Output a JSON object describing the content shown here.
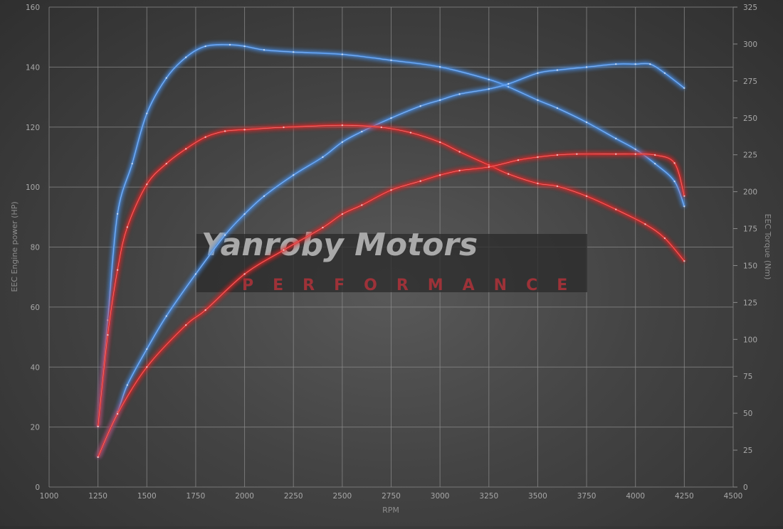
{
  "chart_data": {
    "type": "line",
    "xlabel": "RPM",
    "ylabel_left": "EEC Engine power (HP)",
    "ylabel_right": "EEC Torque (Nm)",
    "xlim": [
      1000,
      4500
    ],
    "ylim_left": [
      0,
      160
    ],
    "ylim_right": [
      0,
      325
    ],
    "x_ticks": [
      1000,
      1250,
      1500,
      1750,
      2000,
      2250,
      2500,
      2750,
      3000,
      3250,
      3500,
      3750,
      4000,
      4250,
      4500
    ],
    "y_left_ticks": [
      0,
      20,
      40,
      60,
      80,
      100,
      120,
      140,
      160
    ],
    "y_right_ticks": [
      0,
      25,
      50,
      75,
      100,
      125,
      150,
      175,
      200,
      225,
      250,
      275,
      300,
      325
    ],
    "grid": true,
    "legend": "none",
    "watermark": {
      "title": "Yanroby Motors",
      "subtitle": "PERFORMANCE"
    },
    "series": [
      {
        "axis": "right",
        "color": "#4a90e8",
        "x": [
          1250,
          1300,
          1350,
          1425,
          1500,
          1600,
          1700,
          1800,
          1925,
          2000,
          2100,
          2250,
          2500,
          2750,
          3000,
          3250,
          3350,
          3500,
          3600,
          3750,
          3900,
          4000,
          4100,
          4200,
          4250
        ],
        "y": [
          41,
          113,
          185,
          219,
          253,
          277,
          291,
          298.5,
          299.5,
          298.5,
          296,
          294.6,
          293,
          289,
          284.5,
          276,
          271,
          262,
          256.6,
          247,
          236,
          228.7,
          219,
          207,
          190
        ]
      },
      {
        "axis": "left",
        "color": "#4a90e8",
        "x": [
          1250,
          1350,
          1400,
          1500,
          1600,
          1750,
          1900,
          2000,
          2100,
          2250,
          2400,
          2500,
          2600,
          2750,
          2900,
          3000,
          3100,
          3250,
          3350,
          3500,
          3600,
          3750,
          3900,
          4000,
          4075,
          4150,
          4250
        ],
        "y": [
          10,
          25,
          34,
          46,
          57,
          71,
          84,
          91,
          97,
          104,
          110,
          115,
          118.5,
          123,
          127,
          129,
          131,
          132.7,
          134.4,
          138,
          139,
          140,
          141,
          141,
          141,
          138,
          133
        ]
      },
      {
        "axis": "right",
        "color": "#e02828",
        "x": [
          1250,
          1300,
          1350,
          1400,
          1500,
          1600,
          1700,
          1800,
          1900,
          2000,
          2200,
          2500,
          2700,
          2850,
          3000,
          3100,
          3250,
          3350,
          3500,
          3600,
          3750,
          3900,
          4050,
          4150,
          4250
        ],
        "y": [
          41,
          103,
          147,
          176,
          205,
          219,
          229,
          237,
          241,
          242,
          243.6,
          245,
          243.6,
          240,
          233.5,
          227,
          218,
          212,
          205.6,
          203.7,
          197,
          188,
          178,
          168.5,
          153
        ]
      },
      {
        "axis": "left",
        "color": "#e02828",
        "x": [
          1250,
          1350,
          1500,
          1700,
          1800,
          2000,
          2200,
          2400,
          2500,
          2600,
          2750,
          2900,
          3000,
          3100,
          3250,
          3400,
          3500,
          3600,
          3700,
          3900,
          4000,
          4100,
          4200,
          4250
        ],
        "y": [
          10,
          24.4,
          40,
          54,
          59,
          71,
          79,
          86.5,
          91,
          94,
          99,
          102,
          104,
          105.5,
          106.7,
          109,
          110,
          110.7,
          111,
          111,
          111,
          110.7,
          108,
          97
        ]
      }
    ]
  }
}
